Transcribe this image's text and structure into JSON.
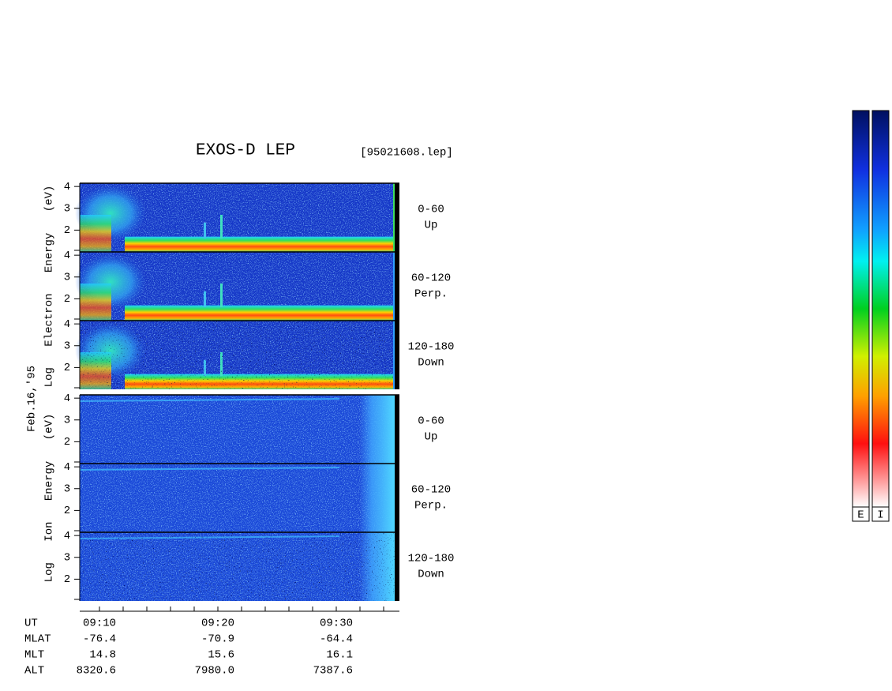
{
  "chart_data": {
    "type": "spectrogram",
    "title": "EXOS-D LEP",
    "subtitle": "[95021608.lep]",
    "date_label": "Feb.16,'95",
    "groups": [
      {
        "ylabel": "Log Electron Energy (eV)",
        "ylim": [
          1,
          4.15
        ],
        "yticks": [
          2,
          3,
          4
        ],
        "panels": [
          {
            "label": "0-60",
            "sublabel": "Up"
          },
          {
            "label": "60-120",
            "sublabel": "Perp."
          },
          {
            "label": "120-180",
            "sublabel": "Down"
          }
        ]
      },
      {
        "ylabel": "Log Ion Energy (eV)",
        "ylim": [
          1,
          4.15
        ],
        "yticks": [
          2,
          3,
          4
        ],
        "panels": [
          {
            "label": "0-60",
            "sublabel": "Up"
          },
          {
            "label": "60-120",
            "sublabel": "Perp."
          },
          {
            "label": "120-180",
            "sublabel": "Down"
          }
        ]
      }
    ],
    "rows": [
      {
        "name": "UT",
        "values": [
          "09:10",
          "09:20",
          "09:30"
        ]
      },
      {
        "name": "MLAT",
        "values": [
          "-76.4",
          "-70.9",
          "-64.4"
        ]
      },
      {
        "name": "MLT",
        "values": [
          "14.8",
          "15.6",
          "16.1"
        ]
      },
      {
        "name": "ALT",
        "values": [
          "8320.6",
          "7980.0",
          "7387.6"
        ]
      }
    ],
    "colorbars": [
      "E",
      "I"
    ]
  }
}
